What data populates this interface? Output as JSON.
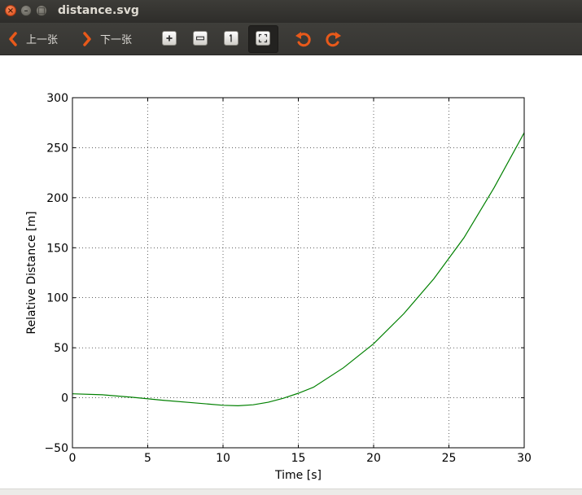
{
  "window": {
    "title": "distance.svg",
    "close_glyph": "×",
    "min_glyph": "–",
    "max_glyph": "□"
  },
  "toolbar": {
    "prev_label": "上一张",
    "next_label": "下一张",
    "icons": [
      "zoom-in-icon",
      "zoom-out-icon",
      "original-size-icon",
      "best-fit-icon",
      "rotate-left-icon",
      "rotate-right-icon"
    ]
  },
  "colors": {
    "line": "#008000",
    "accent": "#e8591a"
  },
  "chart_data": {
    "type": "line",
    "xlabel": "Time [s]",
    "ylabel": "Relative Distance [m]",
    "xlim": [
      0,
      30
    ],
    "ylim": [
      -50,
      300
    ],
    "xticks": [
      0,
      5,
      10,
      15,
      20,
      25,
      30
    ],
    "yticks": [
      -50,
      0,
      50,
      100,
      150,
      200,
      250,
      300
    ],
    "ytick_labels": [
      "−50",
      "0",
      "50",
      "100",
      "150",
      "200",
      "250",
      "300"
    ],
    "grid": true,
    "series": [
      {
        "x": [
          0,
          2,
          4,
          6,
          8,
          10,
          11,
          12,
          13,
          14,
          15,
          16,
          18,
          20,
          22,
          24,
          26,
          28,
          30
        ],
        "y": [
          4,
          3,
          0.5,
          -2.5,
          -5,
          -7.5,
          -8,
          -7,
          -4.5,
          -0.5,
          4.5,
          10.5,
          30,
          54,
          84,
          119,
          160,
          210,
          265
        ]
      }
    ]
  }
}
